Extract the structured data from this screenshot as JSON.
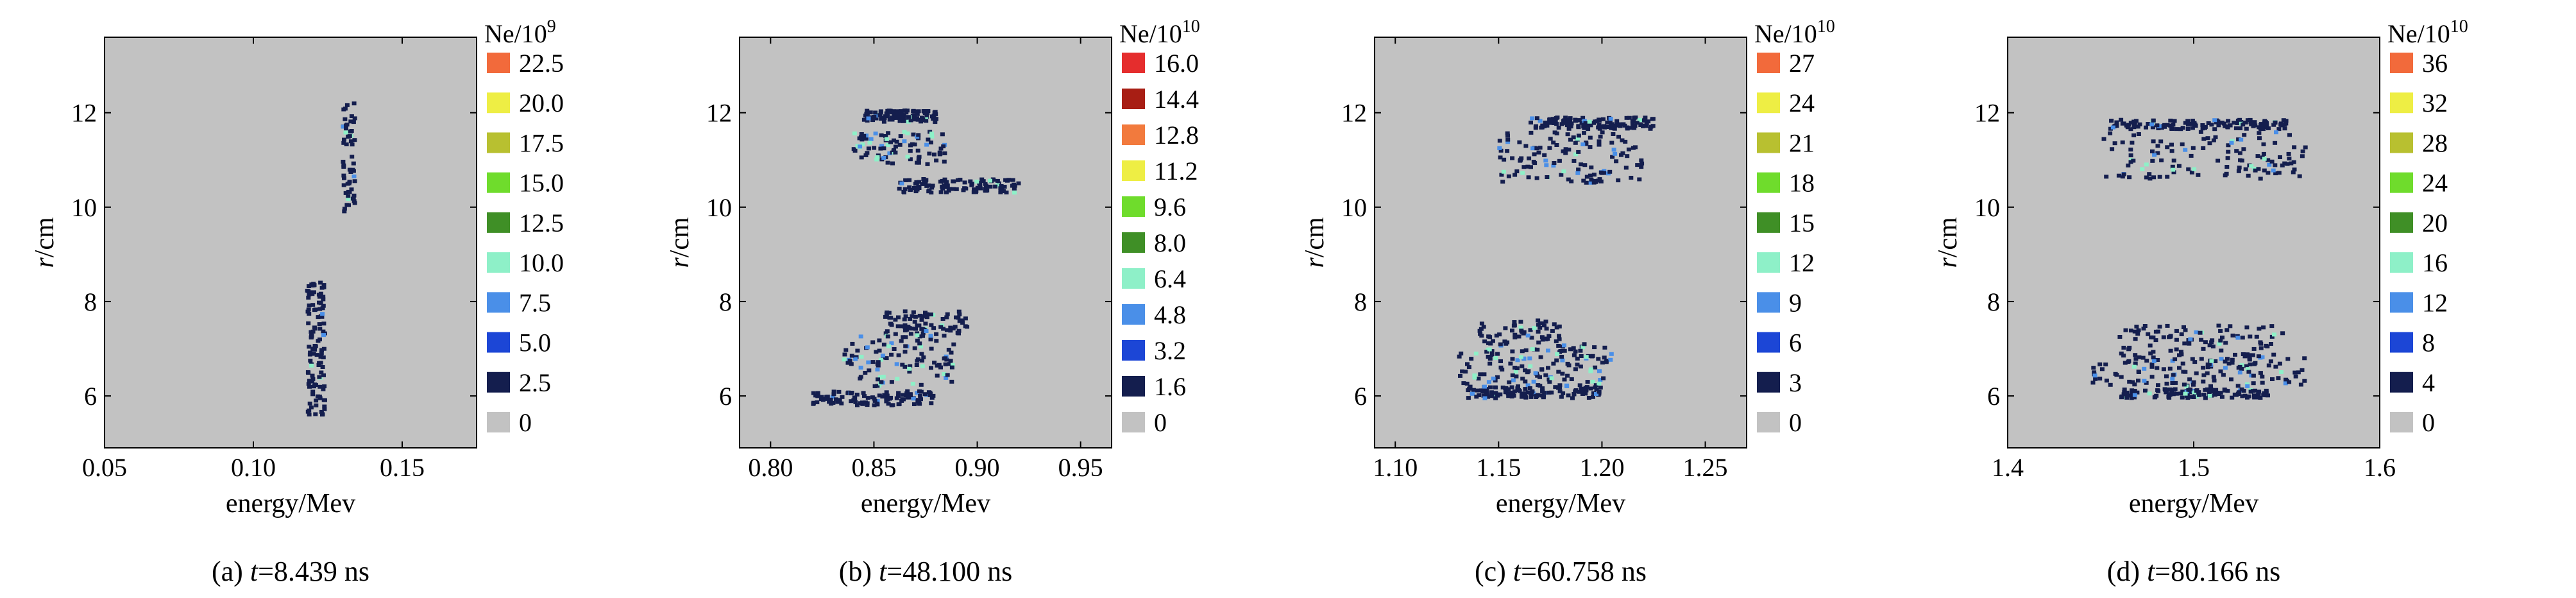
{
  "panels": [
    {
      "caption": {
        "prefix": "(a) ",
        "var": "t",
        "rest": "=8.439 ns"
      },
      "chart_data": {
        "type": "scatter",
        "title": "",
        "xlabel": "energy/Mev",
        "ylabel": {
          "var": "r",
          "unit": "/cm"
        },
        "xlim": [
          0.05,
          0.175
        ],
        "ylim": [
          4.9,
          13.6
        ],
        "xticks": [
          0.05,
          0.1,
          0.15
        ],
        "xtick_labels": [
          "0.05",
          "0.10",
          "0.15"
        ],
        "yticks": [
          6,
          8,
          10,
          12
        ],
        "ytick_labels": [
          "6",
          "8",
          "10",
          "12"
        ],
        "grid": false,
        "legend_placement": "right",
        "colorbar": {
          "title": {
            "base": "Ne/10",
            "exp": "9"
          },
          "levels": [
            "22.5",
            "20.0",
            "17.5",
            "15.0",
            "12.5",
            "10.0",
            "7.5",
            "5.0",
            "2.5",
            "0"
          ],
          "colors": [
            "#f26a3b",
            "#eeee44",
            "#b8c030",
            "#6fdc2c",
            "#3f8f26",
            "#8ef0c8",
            "#4a8fe8",
            "#1c46d6",
            "#141e4e",
            "#c2c2c2"
          ]
        },
        "clusters": [
          {
            "x": [
              0.13,
              0.134
            ],
            "y": [
              9.9,
              12.2
            ],
            "n": 60,
            "hi": 0.08
          },
          {
            "x": [
              0.118,
              0.124
            ],
            "y": [
              5.6,
              8.4
            ],
            "n": 120,
            "hi": 0.06
          }
        ]
      }
    },
    {
      "caption": {
        "prefix": "(b) ",
        "var": "t",
        "rest": "=48.100 ns"
      },
      "chart_data": {
        "type": "scatter",
        "title": "",
        "xlabel": "energy/Mev",
        "ylabel": {
          "var": "r",
          "unit": "/cm"
        },
        "xlim": [
          0.785,
          0.965
        ],
        "ylim": [
          4.9,
          13.6
        ],
        "xticks": [
          0.8,
          0.85,
          0.9,
          0.95
        ],
        "xtick_labels": [
          "0.80",
          "0.85",
          "0.90",
          "0.95"
        ],
        "yticks": [
          6,
          8,
          10,
          12
        ],
        "ytick_labels": [
          "6",
          "8",
          "10",
          "12"
        ],
        "grid": false,
        "legend_placement": "right",
        "colorbar": {
          "title": {
            "base": "Ne/10",
            "exp": "10"
          },
          "levels": [
            "16.0",
            "14.4",
            "12.8",
            "11.2",
            "9.6",
            "8.0",
            "6.4",
            "4.8",
            "3.2",
            "1.6",
            "0"
          ],
          "colors": [
            "#e52d2d",
            "#a81e14",
            "#f27a3d",
            "#eeee44",
            "#6fdc2c",
            "#3f8f26",
            "#8ef0c8",
            "#4a8fe8",
            "#1c46d6",
            "#141e4e",
            "#c2c2c2"
          ]
        },
        "clusters": [
          {
            "x": [
              0.845,
              0.88
            ],
            "y": [
              11.8,
              12.05
            ],
            "n": 110,
            "hi": 0.05
          },
          {
            "x": [
              0.84,
              0.885
            ],
            "y": [
              10.9,
              11.6
            ],
            "n": 90,
            "hi": 0.3
          },
          {
            "x": [
              0.86,
              0.92
            ],
            "y": [
              10.3,
              10.6
            ],
            "n": 110,
            "hi": 0.05
          },
          {
            "x": [
              0.855,
              0.895
            ],
            "y": [
              7.3,
              7.8
            ],
            "n": 80,
            "hi": 0.1
          },
          {
            "x": [
              0.835,
              0.89
            ],
            "y": [
              6.2,
              7.3
            ],
            "n": 110,
            "hi": 0.35
          },
          {
            "x": [
              0.82,
              0.88
            ],
            "y": [
              5.8,
              6.1
            ],
            "n": 110,
            "hi": 0.05
          }
        ]
      }
    },
    {
      "caption": {
        "prefix": "(c) ",
        "var": "t",
        "rest": "=60.758 ns"
      },
      "chart_data": {
        "type": "scatter",
        "title": "",
        "xlabel": "energy/Mev",
        "ylabel": {
          "var": "r",
          "unit": "/cm"
        },
        "xlim": [
          1.09,
          1.27
        ],
        "ylim": [
          4.9,
          13.6
        ],
        "xticks": [
          1.1,
          1.15,
          1.2,
          1.25
        ],
        "xtick_labels": [
          "1.10",
          "1.15",
          "1.20",
          "1.25"
        ],
        "yticks": [
          6,
          8,
          10,
          12
        ],
        "ytick_labels": [
          "6",
          "8",
          "10",
          "12"
        ],
        "grid": false,
        "legend_placement": "right",
        "colorbar": {
          "title": {
            "base": "Ne/10",
            "exp": "10"
          },
          "levels": [
            "27",
            "24",
            "21",
            "18",
            "15",
            "12",
            "9",
            "6",
            "3",
            "0"
          ],
          "colors": [
            "#f26a3b",
            "#eeee44",
            "#b8c030",
            "#6fdc2c",
            "#3f8f26",
            "#8ef0c8",
            "#4a8fe8",
            "#1c46d6",
            "#141e4e",
            "#c2c2c2"
          ]
        },
        "clusters": [
          {
            "x": [
              1.165,
              1.225
            ],
            "y": [
              11.65,
              11.9
            ],
            "n": 130,
            "hi": 0.05
          },
          {
            "x": [
              1.15,
              1.22
            ],
            "y": [
              10.5,
              11.6
            ],
            "n": 130,
            "hi": 0.2
          },
          {
            "x": [
              1.14,
              1.18
            ],
            "y": [
              7.1,
              7.6
            ],
            "n": 60,
            "hi": 0.05
          },
          {
            "x": [
              1.13,
              1.205
            ],
            "y": [
              6.2,
              7.1
            ],
            "n": 140,
            "hi": 0.25
          },
          {
            "x": [
              1.135,
              1.2
            ],
            "y": [
              5.95,
              6.2
            ],
            "n": 120,
            "hi": 0.05
          }
        ]
      }
    },
    {
      "caption": {
        "prefix": "(d) ",
        "var": "t",
        "rest": "=80.166 ns"
      },
      "chart_data": {
        "type": "scatter",
        "title": "",
        "xlabel": "energy/Mev",
        "ylabel": {
          "var": "r",
          "unit": "/cm"
        },
        "xlim": [
          1.4,
          1.6
        ],
        "ylim": [
          4.9,
          13.6
        ],
        "xticks": [
          1.4,
          1.5,
          1.6
        ],
        "xtick_labels": [
          "1.4",
          "1.5",
          "1.6"
        ],
        "yticks": [
          6,
          8,
          10,
          12
        ],
        "ytick_labels": [
          "6",
          "8",
          "10",
          "12"
        ],
        "grid": false,
        "legend_placement": "right",
        "colorbar": {
          "title": {
            "base": "Ne/10",
            "exp": "10"
          },
          "levels": [
            "36",
            "32",
            "28",
            "24",
            "20",
            "16",
            "12",
            "8",
            "4",
            "0"
          ],
          "colors": [
            "#f26a3b",
            "#eeee44",
            "#b8c030",
            "#6fdc2c",
            "#3f8f26",
            "#8ef0c8",
            "#4a8fe8",
            "#1c46d6",
            "#141e4e",
            "#c2c2c2"
          ]
        },
        "clusters": [
          {
            "x": [
              1.455,
              1.55
            ],
            "y": [
              11.65,
              11.85
            ],
            "n": 140,
            "hi": 0.05
          },
          {
            "x": [
              1.45,
              1.56
            ],
            "y": [
              10.6,
              11.6
            ],
            "n": 120,
            "hi": 0.15
          },
          {
            "x": [
              1.46,
              1.55
            ],
            "y": [
              6.8,
              7.5
            ],
            "n": 100,
            "hi": 0.1
          },
          {
            "x": [
              1.445,
              1.56
            ],
            "y": [
              6.2,
              6.8
            ],
            "n": 130,
            "hi": 0.15
          },
          {
            "x": [
              1.46,
              1.54
            ],
            "y": [
              5.95,
              6.15
            ],
            "n": 120,
            "hi": 0.05
          }
        ]
      }
    }
  ]
}
